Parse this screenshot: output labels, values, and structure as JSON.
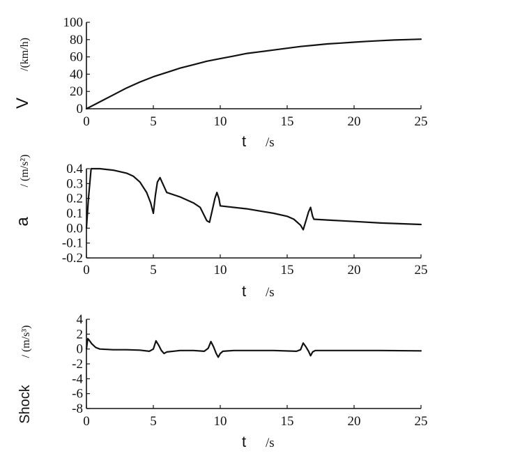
{
  "chart_data": [
    {
      "type": "line",
      "title": "",
      "xlabel": {
        "symbol": "t",
        "unit": "/s"
      },
      "ylabel": {
        "symbol": "V",
        "unit": "/(km/h)"
      },
      "xlim": [
        0,
        25
      ],
      "ylim": [
        0,
        100
      ],
      "xticks": [
        0,
        5,
        10,
        15,
        20,
        25
      ],
      "yticks": [
        0,
        20,
        40,
        60,
        80,
        100
      ],
      "grid": false,
      "series": [
        {
          "x": [
            0,
            1,
            2,
            3,
            4,
            5,
            6,
            7,
            8,
            9,
            10,
            11,
            12,
            13,
            14,
            15,
            16,
            17,
            18,
            19,
            20,
            21,
            22,
            23,
            24,
            25
          ],
          "y": [
            0,
            8,
            16,
            24,
            31,
            37,
            42,
            47,
            51,
            55,
            58,
            61,
            64,
            66,
            68,
            70,
            72,
            73.5,
            75,
            76,
            77,
            78,
            78.8,
            79.5,
            80,
            80.5
          ]
        }
      ]
    },
    {
      "type": "line",
      "title": "",
      "xlabel": {
        "symbol": "t",
        "unit": "/s"
      },
      "ylabel": {
        "symbol": "a",
        "unit": "/ (m/s²)"
      },
      "xlim": [
        0,
        25
      ],
      "ylim": [
        -0.2,
        0.4
      ],
      "xticks": [
        0,
        5,
        10,
        15,
        20,
        25
      ],
      "yticks": [
        -0.2,
        -0.1,
        0,
        0.1,
        0.2,
        0.3,
        0.4
      ],
      "grid": false,
      "series": [
        {
          "x": [
            0,
            0.15,
            0.35,
            1,
            2,
            3,
            3.5,
            4,
            4.5,
            4.8,
            5,
            5.15,
            5.3,
            5.5,
            5.7,
            6,
            7,
            8,
            8.5,
            9,
            9.2,
            9.4,
            9.6,
            9.75,
            9.9,
            10,
            12,
            14,
            15,
            15.5,
            16,
            16.2,
            16.4,
            16.6,
            16.75,
            16.9,
            17,
            18,
            20,
            22,
            25
          ],
          "y": [
            0,
            0.2,
            0.4,
            0.4,
            0.39,
            0.37,
            0.35,
            0.31,
            0.24,
            0.17,
            0.1,
            0.22,
            0.31,
            0.34,
            0.3,
            0.24,
            0.21,
            0.17,
            0.14,
            0.05,
            0.04,
            0.12,
            0.2,
            0.24,
            0.2,
            0.15,
            0.13,
            0.1,
            0.08,
            0.06,
            0.02,
            -0.01,
            0.05,
            0.11,
            0.14,
            0.08,
            0.06,
            0.055,
            0.045,
            0.035,
            0.025
          ]
        }
      ]
    },
    {
      "type": "line",
      "title": "",
      "xlabel": {
        "symbol": "t",
        "unit": "/s"
      },
      "ylabel": {
        "symbol": "Shock",
        "unit": "/ (m/s³)"
      },
      "xlim": [
        0,
        25
      ],
      "ylim": [
        -8,
        4
      ],
      "xticks": [
        0,
        5,
        10,
        15,
        20,
        25
      ],
      "yticks": [
        -8,
        -6,
        -4,
        -2,
        0,
        2,
        4
      ],
      "grid": false,
      "series": [
        {
          "x": [
            0,
            0.1,
            0.2,
            0.4,
            0.7,
            1,
            2,
            3,
            4,
            4.7,
            5,
            5.2,
            5.4,
            5.6,
            5.8,
            6,
            7,
            8,
            8.8,
            9.1,
            9.3,
            9.5,
            9.7,
            9.85,
            10,
            10.2,
            11,
            12,
            14,
            15.7,
            16,
            16.2,
            16.4,
            16.6,
            16.75,
            16.9,
            17.1,
            18,
            20,
            22,
            25
          ],
          "y": [
            0,
            1.4,
            1.2,
            0.7,
            0.2,
            0,
            -0.1,
            -0.1,
            -0.15,
            -0.3,
            0,
            1.1,
            0.5,
            -0.2,
            -0.6,
            -0.4,
            -0.2,
            -0.2,
            -0.3,
            0.1,
            1.0,
            0.3,
            -0.6,
            -1.1,
            -0.6,
            -0.3,
            -0.2,
            -0.2,
            -0.2,
            -0.3,
            -0.1,
            0.8,
            0.3,
            -0.3,
            -0.9,
            -0.4,
            -0.2,
            -0.2,
            -0.2,
            -0.2,
            -0.25
          ]
        }
      ]
    }
  ]
}
